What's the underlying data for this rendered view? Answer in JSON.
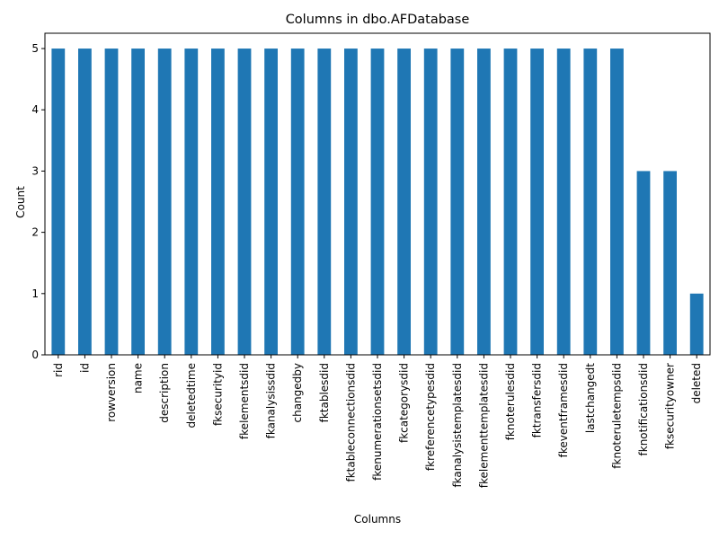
{
  "chart_data": {
    "type": "bar",
    "title": "Columns in dbo.AFDatabase",
    "xlabel": "Columns",
    "ylabel": "Count",
    "ylim": [
      0,
      5.25
    ],
    "yticks": [
      0,
      1,
      2,
      3,
      4,
      5
    ],
    "bar_color": "#1f77b4",
    "grid": false,
    "legend": "none",
    "categories": [
      "rid",
      "id",
      "rowversion",
      "name",
      "description",
      "deletedtime",
      "fksecurityid",
      "fkelementsdid",
      "fkanalysissdid",
      "changedby",
      "fktablesdid",
      "fktableconnectionsdid",
      "fkenumerationsetsdid",
      "fkcategorysdid",
      "fkreferencetypesdid",
      "fkanalysistemplatesdid",
      "fkelementtemplatesdid",
      "fknoterulesdid",
      "fktransfersdid",
      "fkeventframesdid",
      "lastchangedt",
      "fknoteruletempsdid",
      "fknotificationsdid",
      "fksecurityowner",
      "deleted"
    ],
    "values": [
      5,
      5,
      5,
      5,
      5,
      5,
      5,
      5,
      5,
      5,
      5,
      5,
      5,
      5,
      5,
      5,
      5,
      5,
      5,
      5,
      5,
      5,
      3,
      3,
      1
    ]
  }
}
